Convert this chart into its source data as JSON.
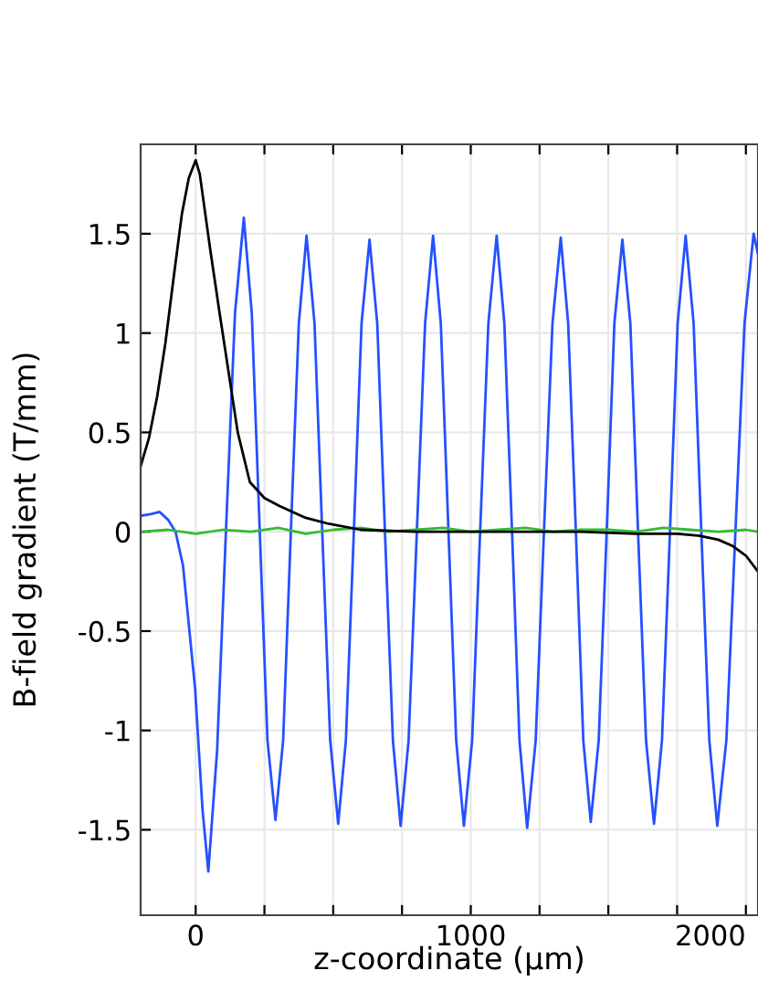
{
  "chart_data": {
    "type": "line",
    "xlabel": "z-coordinate (µm)",
    "ylabel": "B-field gradient (T/mm)",
    "xlim": [
      -200,
      2044
    ],
    "ylim": [
      -1.93,
      1.95
    ],
    "xticks": [
      0,
      {
        "value": 250,
        "label": null
      },
      {
        "value": 500,
        "label": null
      },
      {
        "value": 750,
        "label": null
      },
      1000,
      {
        "value": 1250,
        "label": null
      },
      {
        "value": 1500,
        "label": null
      },
      {
        "value": 1750,
        "label": null
      },
      2000
    ],
    "yticks": [
      -1.5,
      -1,
      -0.5,
      0,
      0.5,
      1,
      1.5
    ],
    "grid": true,
    "line_style": "solid",
    "marker": "none",
    "series": [
      {
        "color": "#2450ff",
        "x": [
          -200,
          -160,
          -131,
          -100,
          -73,
          -46,
          -2,
          25,
          46,
          78,
          110,
          143,
          175,
          204,
          233,
          261,
          290,
          318,
          346,
          375,
          403,
          432,
          460,
          489,
          518,
          546,
          575,
          603,
          632,
          660,
          688,
          717,
          745,
          774,
          804,
          834,
          863,
          891,
          919,
          947,
          975,
          1005,
          1034,
          1064,
          1094,
          1122,
          1150,
          1177,
          1205,
          1236,
          1266,
          1297,
          1327,
          1354,
          1382,
          1409,
          1436,
          1465,
          1494,
          1522,
          1551,
          1580,
          1608,
          1637,
          1666,
          1695,
          1724,
          1752,
          1781,
          1810,
          1838,
          1867,
          1896,
          1929,
          1962,
          1995,
          2028,
          2044
        ],
        "values": [
          0.08,
          0.09,
          0.1,
          0.06,
          0,
          -0.17,
          -0.79,
          -1.4,
          -1.71,
          -1.1,
          0,
          1.1,
          1.58,
          1.1,
          0,
          -1.05,
          -1.45,
          -1.05,
          0,
          1.05,
          1.49,
          1.05,
          0,
          -1.05,
          -1.47,
          -1.05,
          0,
          1.05,
          1.47,
          1.05,
          0,
          -1.05,
          -1.48,
          -1.05,
          0,
          1.05,
          1.49,
          1.05,
          0,
          -1.05,
          -1.48,
          -1.05,
          0,
          1.05,
          1.49,
          1.05,
          0,
          -1.05,
          -1.49,
          -1.05,
          0,
          1.05,
          1.48,
          1.05,
          0,
          -1.05,
          -1.46,
          -1.05,
          0,
          1.05,
          1.47,
          1.05,
          0,
          -1.05,
          -1.47,
          -1.05,
          0,
          1.05,
          1.49,
          1.05,
          0,
          -1.05,
          -1.48,
          -1.05,
          0,
          1.05,
          1.5,
          1.4
        ]
      },
      {
        "color": "#33bb33",
        "x": [
          -200,
          -100,
          0,
          100,
          200,
          300,
          400,
          500,
          600,
          700,
          800,
          900,
          1000,
          1100,
          1200,
          1300,
          1400,
          1500,
          1600,
          1700,
          1800,
          1900,
          2000,
          2044
        ],
        "values": [
          0,
          0.01,
          -0.01,
          0.01,
          0,
          0.02,
          -0.01,
          0.01,
          0.02,
          0,
          0.01,
          0.02,
          0,
          0.01,
          0.02,
          0,
          0.01,
          0.01,
          0,
          0.02,
          0.01,
          0,
          0.01,
          0
        ]
      },
      {
        "color": "#000000",
        "x": [
          -200,
          -170,
          -140,
          -110,
          -80,
          -50,
          -25,
          0,
          15,
          35,
          53,
          86,
          119,
          153,
          197,
          250,
          305,
          400,
          484,
          600,
          800,
          1000,
          1200,
          1400,
          1600,
          1750,
          1832,
          1900,
          1950,
          2000,
          2044
        ],
        "values": [
          0.33,
          0.47,
          0.68,
          0.95,
          1.28,
          1.6,
          1.78,
          1.87,
          1.8,
          1.6,
          1.42,
          1.11,
          0.81,
          0.5,
          0.25,
          0.17,
          0.13,
          0.07,
          0.04,
          0.01,
          0,
          0,
          0,
          0,
          -0.01,
          -0.01,
          -0.02,
          -0.04,
          -0.07,
          -0.12,
          -0.2
        ]
      }
    ]
  }
}
